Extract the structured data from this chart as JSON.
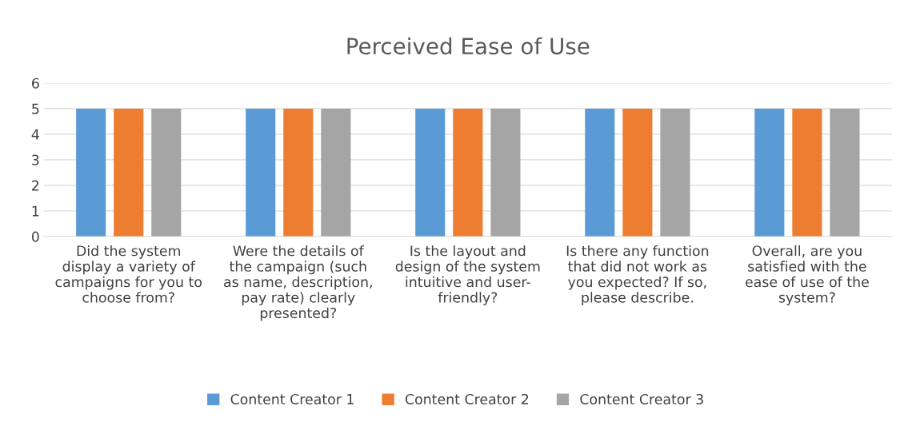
{
  "chart_data": {
    "type": "bar",
    "title": "Perceived Ease of Use",
    "categories": [
      "Did the system\ndisplay a variety of\ncampaigns for you to\nchoose from?",
      "Were the details of\nthe campaign (such\nas name, description,\npay rate) clearly\npresented?",
      "Is the layout and\ndesign of the system\nintuitive and user-\nfriendly?",
      "Is there any function\nthat did not work as\nyou expected? If so,\nplease describe.",
      "Overall, are you\nsatisfied with the\nease of use of the\nsystem?"
    ],
    "series": [
      {
        "name": "Content Creator 1",
        "color": "#5b9bd5",
        "values": [
          5,
          5,
          5,
          5,
          5
        ]
      },
      {
        "name": "Content Creator 2",
        "color": "#ed7d31",
        "values": [
          5,
          5,
          5,
          5,
          5
        ]
      },
      {
        "name": "Content Creator 3",
        "color": "#a5a5a5",
        "values": [
          5,
          5,
          5,
          5,
          5
        ]
      }
    ],
    "ylim": [
      0,
      6
    ],
    "yticks": [
      0,
      1,
      2,
      3,
      4,
      5,
      6
    ],
    "grid": "y",
    "legend": "bottom"
  }
}
